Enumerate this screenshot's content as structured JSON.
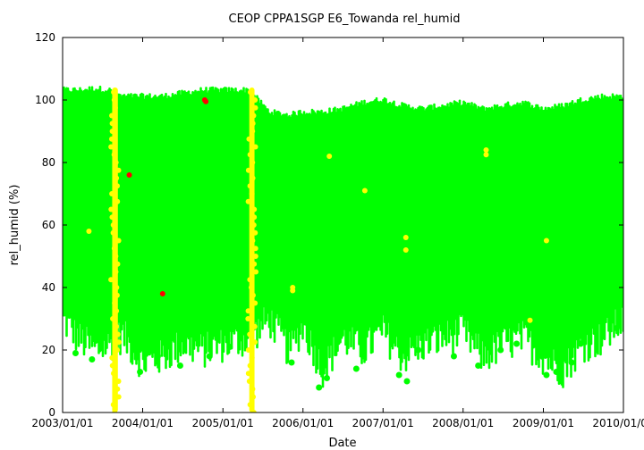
{
  "chart_data": {
    "type": "scatter",
    "title": "CEOP CPPA1SGP E6_Towanda  rel_humid",
    "xlabel": "Date",
    "ylabel": "rel_humid (%)",
    "ylim": [
      0,
      120
    ],
    "xlim": [
      "2003/01/01",
      "2010/01/01"
    ],
    "x_tick_labels": [
      "2003/01/01",
      "2004/01/01",
      "2005/01/01",
      "2006/01/01",
      "2007/01/01",
      "2008/01/01",
      "2009/01/01",
      "2010/01/01"
    ],
    "y_tick_labels": [
      "0",
      "20",
      "40",
      "60",
      "80",
      "100",
      "120"
    ],
    "grid": false,
    "legend": "none",
    "colors": {
      "good": "#00ff00",
      "questionable": "#ffff00",
      "bad": "#ff0000"
    },
    "band": {
      "description": "dense daily range of good-quality observations",
      "points": [
        {
          "x": "2003/01/01",
          "low": 30,
          "high": 103
        },
        {
          "x": "2003/03/15",
          "low": 24,
          "high": 103
        },
        {
          "x": "2003/06/01",
          "low": 20,
          "high": 103.5
        },
        {
          "x": "2003/08/01",
          "low": 22,
          "high": 103
        },
        {
          "x": "2003/10/01",
          "low": 25,
          "high": 101
        },
        {
          "x": "2004/01/01",
          "low": 16,
          "high": 101
        },
        {
          "x": "2004/04/01",
          "low": 18,
          "high": 101
        },
        {
          "x": "2004/07/01",
          "low": 22,
          "high": 102
        },
        {
          "x": "2004/10/01",
          "low": 20,
          "high": 103
        },
        {
          "x": "2005/01/01",
          "low": 22,
          "high": 103
        },
        {
          "x": "2005/05/01",
          "low": 24,
          "high": 103
        },
        {
          "x": "2005/08/01",
          "low": 30,
          "high": 96
        },
        {
          "x": "2005/11/01",
          "low": 20,
          "high": 95
        },
        {
          "x": "2006/01/01",
          "low": 28,
          "high": 96
        },
        {
          "x": "2006/04/01",
          "low": 14,
          "high": 96
        },
        {
          "x": "2006/07/01",
          "low": 24,
          "high": 97
        },
        {
          "x": "2006/10/01",
          "low": 20,
          "high": 99
        },
        {
          "x": "2007/01/01",
          "low": 26,
          "high": 100
        },
        {
          "x": "2007/04/01",
          "low": 18,
          "high": 98
        },
        {
          "x": "2007/07/01",
          "low": 22,
          "high": 97
        },
        {
          "x": "2007/10/01",
          "low": 24,
          "high": 98
        },
        {
          "x": "2008/01/01",
          "low": 26,
          "high": 99
        },
        {
          "x": "2008/04/01",
          "low": 18,
          "high": 97
        },
        {
          "x": "2008/07/01",
          "low": 22,
          "high": 98
        },
        {
          "x": "2008/10/01",
          "low": 24,
          "high": 99
        },
        {
          "x": "2009/01/01",
          "low": 18,
          "high": 97
        },
        {
          "x": "2009/04/01",
          "low": 14,
          "high": 98
        },
        {
          "x": "2009/07/01",
          "low": 22,
          "high": 100
        },
        {
          "x": "2009/10/01",
          "low": 24,
          "high": 101
        },
        {
          "x": "2010/01/01",
          "low": 30,
          "high": 101
        }
      ]
    },
    "series": [
      {
        "flag": "good",
        "color": "#00ff00",
        "points": [
          {
            "x": "2003/03/01",
            "y": 19
          },
          {
            "x": "2003/05/15",
            "y": 17
          },
          {
            "x": "2003/12/20",
            "y": 13
          },
          {
            "x": "2004/03/10",
            "y": 18
          },
          {
            "x": "2004/06/20",
            "y": 15
          },
          {
            "x": "2004/11/01",
            "y": 18
          },
          {
            "x": "2005/02/01",
            "y": 21
          },
          {
            "x": "2005/11/10",
            "y": 16
          },
          {
            "x": "2006/03/15",
            "y": 8
          },
          {
            "x": "2006/04/20",
            "y": 11
          },
          {
            "x": "2006/09/01",
            "y": 14
          },
          {
            "x": "2007/03/15",
            "y": 12
          },
          {
            "x": "2007/04/20",
            "y": 10
          },
          {
            "x": "2007/06/10",
            "y": 20
          },
          {
            "x": "2007/11/20",
            "y": 18
          },
          {
            "x": "2008/03/10",
            "y": 15
          },
          {
            "x": "2008/06/20",
            "y": 20
          },
          {
            "x": "2008/09/01",
            "y": 22
          },
          {
            "x": "2009/01/15",
            "y": 12
          },
          {
            "x": "2009/03/01",
            "y": 13
          },
          {
            "x": "2009/05/10",
            "y": 16
          },
          {
            "x": "2009/06/20",
            "y": 22
          },
          {
            "x": "2009/12/01",
            "y": 27
          }
        ]
      },
      {
        "flag": "questionable",
        "color": "#ffff00",
        "points": [
          {
            "x": "2003/05/01",
            "y": 58
          },
          {
            "x": "2005/11/15",
            "y": 40
          },
          {
            "x": "2005/11/15",
            "y": 39
          },
          {
            "x": "2006/05/01",
            "y": 82
          },
          {
            "x": "2006/10/10",
            "y": 71
          },
          {
            "x": "2007/04/15",
            "y": 56
          },
          {
            "x": "2007/04/15",
            "y": 52
          },
          {
            "x": "2008/04/15",
            "y": 84
          },
          {
            "x": "2008/04/15",
            "y": 82.5
          },
          {
            "x": "2008/11/01",
            "y": 29.5
          },
          {
            "x": "2009/01/15",
            "y": 55
          }
        ]
      },
      {
        "flag": "bad",
        "color": "#ff0000",
        "points": [
          {
            "x": "2003/11/01",
            "y": 76
          },
          {
            "x": "2004/04/01",
            "y": 38
          },
          {
            "x": "2004/10/10",
            "y": 100
          },
          {
            "x": "2004/10/15",
            "y": 99.5
          }
        ]
      }
    ],
    "questionable_periods": [
      {
        "start": "2003/08/15",
        "end": "2003/09/10",
        "low": 0,
        "high": 104
      },
      {
        "start": "2005/05/01",
        "end": "2005/05/25",
        "low": 0,
        "high": 104
      }
    ]
  }
}
